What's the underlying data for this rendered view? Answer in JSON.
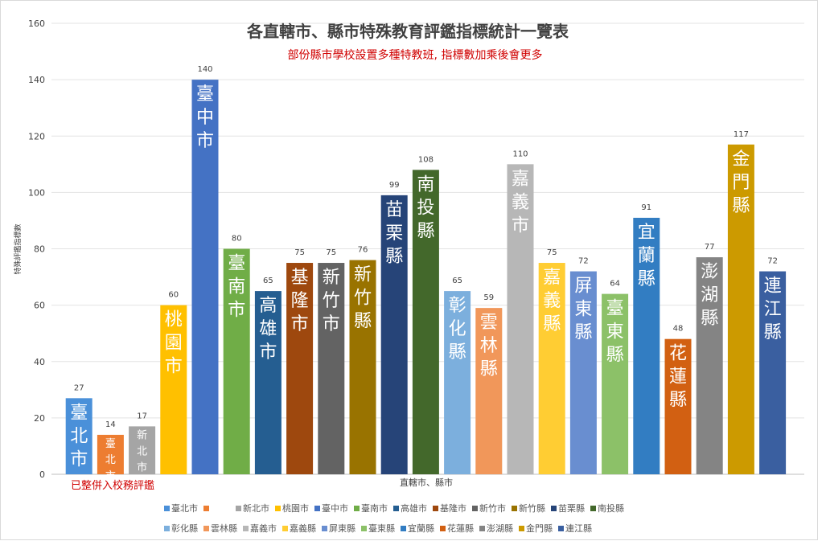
{
  "chart_data": {
    "type": "bar",
    "title": "各直轄市、縣市特殊教育評鑑指標統計一覽表",
    "subtitle": "部份縣市學校設置多種特教班, 指標數加乘後會更多",
    "xlabel": "直轄市、縣市",
    "ylabel": "特殊評鑑指標數",
    "ylim": [
      0,
      160
    ],
    "yticks": [
      0,
      20,
      40,
      60,
      80,
      100,
      120,
      140,
      160
    ],
    "grid": true,
    "legend_position": "bottom",
    "annotation": "已整併入校務評鑑",
    "categories": [
      "臺北市",
      "臺北市",
      "新北市",
      "桃園市",
      "臺中市",
      "臺南市",
      "高雄市",
      "基隆市",
      "新竹市",
      "新竹縣",
      "苗栗縣",
      "南投縣",
      "彰化縣",
      "雲林縣",
      "嘉義市",
      "嘉義縣",
      "屏東縣",
      "臺東縣",
      "宜蘭縣",
      "花蓮縣",
      "澎湖縣",
      "金門縣",
      "連江縣"
    ],
    "values": [
      27,
      14,
      17,
      60,
      140,
      80,
      65,
      75,
      75,
      76,
      99,
      108,
      65,
      59,
      110,
      75,
      72,
      64,
      91,
      48,
      77,
      117,
      72
    ],
    "colors": [
      "#4a90d9",
      "#ed7d31",
      "#a5a5a5",
      "#ffc000",
      "#4472c4",
      "#70ad47",
      "#255e91",
      "#9e480e",
      "#636363",
      "#997300",
      "#264478",
      "#43682b",
      "#7cafdd",
      "#f1975a",
      "#b7b7b7",
      "#ffcd33",
      "#698ed0",
      "#8cc168",
      "#327dc2",
      "#d26012",
      "#848484",
      "#cc9a00",
      "#3a5fa0"
    ],
    "legend_labels": [
      "臺北市",
      "",
      "新北市",
      "桃園市",
      "臺中市",
      "臺南市",
      "高雄市",
      "基隆市",
      "新竹市",
      "新竹縣",
      "苗栗縣",
      "南投縣",
      "彰化縣",
      "雲林縣",
      "嘉義市",
      "嘉義縣",
      "屏東縣",
      "臺東縣",
      "宜蘭縣",
      "花蓮縣",
      "澎湖縣",
      "金門縣",
      "連江縣"
    ],
    "title_color": "#404040",
    "subtitle_color": "#d00000",
    "annotation_color": "#d00000"
  }
}
